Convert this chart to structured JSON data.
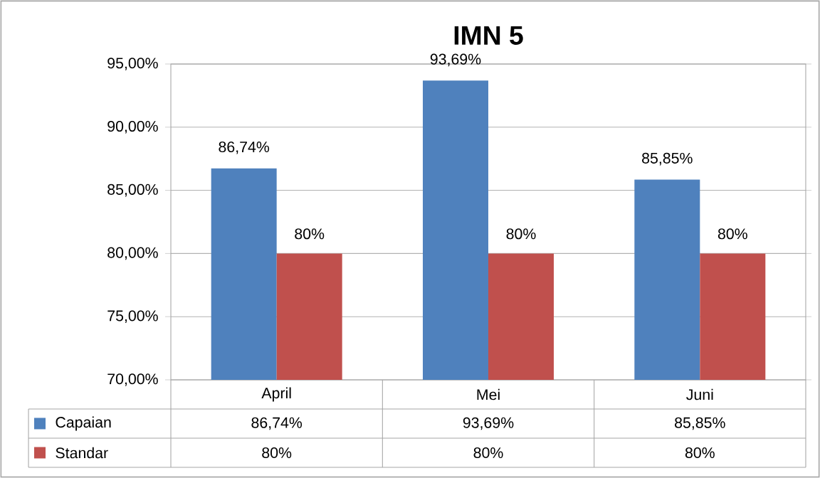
{
  "chart_data": {
    "type": "bar",
    "title": "IMN 5",
    "categories": [
      "April",
      "Mei",
      "Juni"
    ],
    "series": [
      {
        "name": "Capaian",
        "color": "#4f81bd",
        "values": [
          86.74,
          93.69,
          85.85
        ],
        "value_labels": [
          "86,74%",
          "93,69%",
          "85,85%"
        ]
      },
      {
        "name": "Standar",
        "color": "#c0504d",
        "values": [
          80,
          80,
          80
        ],
        "value_labels": [
          "80%",
          "80%",
          "80%"
        ]
      }
    ],
    "ylim": [
      70,
      95
    ],
    "yticks": [
      {
        "value": 70,
        "label": "70,00%"
      },
      {
        "value": 75,
        "label": "75,00%"
      },
      {
        "value": 80,
        "label": "80,00%"
      },
      {
        "value": 85,
        "label": "85,00%"
      },
      {
        "value": 90,
        "label": "90,00%"
      },
      {
        "value": 95,
        "label": "95,00%"
      }
    ],
    "grid": "y",
    "legend": "bottom"
  }
}
